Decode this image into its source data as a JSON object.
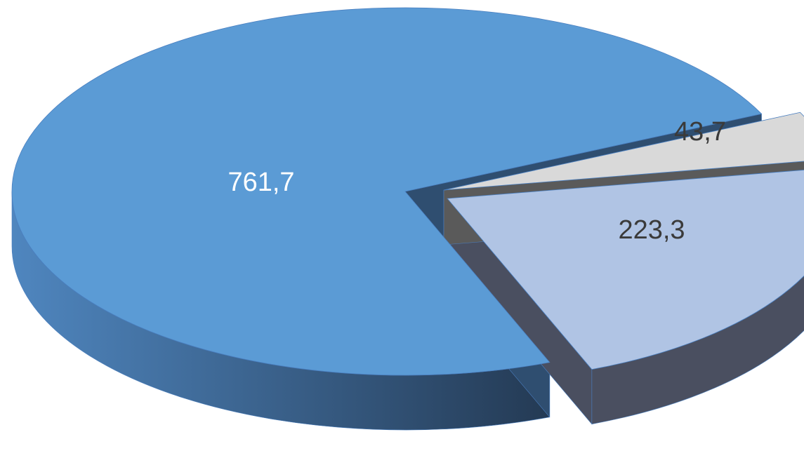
{
  "chart_data": {
    "type": "pie",
    "style": "3d-exploded",
    "values": [
      761.7,
      223.3,
      43.7
    ],
    "labels": [
      "761,7",
      "223,3",
      "43,7"
    ],
    "colors": {
      "top": [
        "#5b9bd5",
        "#b0c4e4",
        "#d9d9d9"
      ],
      "side": [
        "#3a5f86",
        "#4a4f60",
        "#5a5a5a"
      ],
      "label": [
        "#ffffff",
        "#3a3a3a",
        "#3a3a3a"
      ]
    },
    "legend": "none"
  }
}
